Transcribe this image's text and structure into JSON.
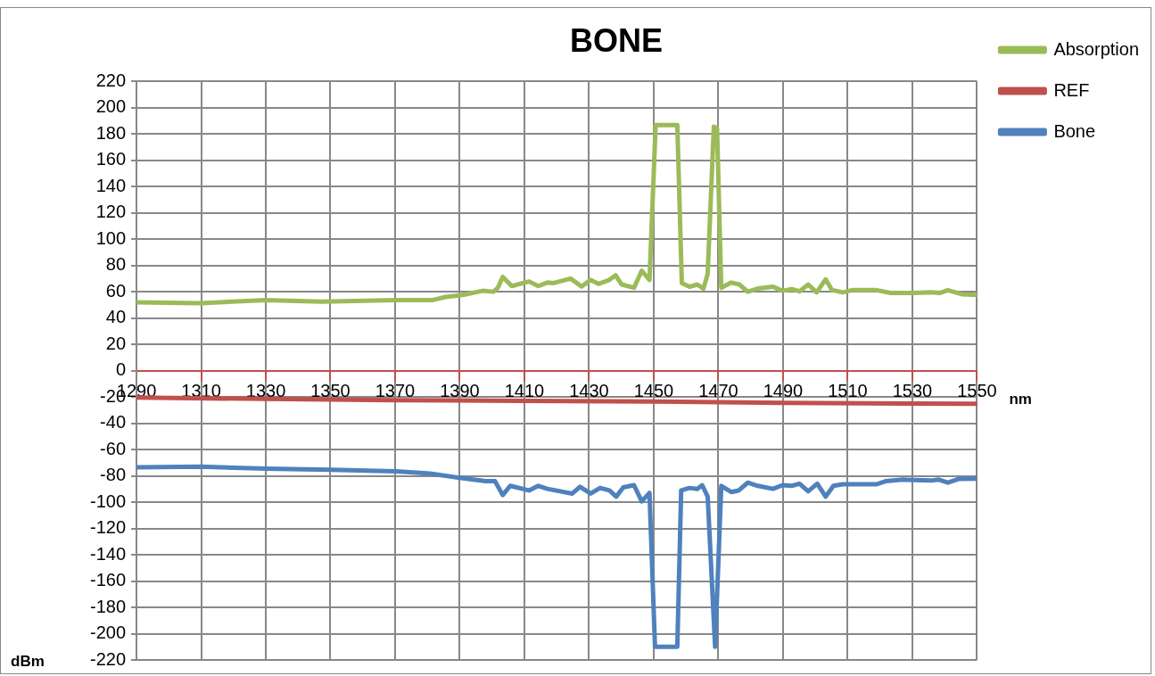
{
  "chart_data": {
    "type": "line",
    "title": "BONE",
    "xlabel": "nm",
    "ylabel": "dBm",
    "xlim": [
      1290,
      1550
    ],
    "xticks": [
      1290,
      1310,
      1330,
      1350,
      1370,
      1390,
      1410,
      1430,
      1450,
      1470,
      1490,
      1510,
      1530,
      1550
    ],
    "ylim": [
      -220,
      220
    ],
    "yticks": [
      -220,
      -200,
      -180,
      -160,
      -140,
      -120,
      -100,
      -80,
      -60,
      -40,
      -20,
      0,
      20,
      40,
      60,
      80,
      100,
      120,
      140,
      160,
      180,
      200,
      220
    ],
    "grid": true,
    "legend": "right",
    "marker": "none",
    "line_style": "solid",
    "series": [
      {
        "name": "Absorption",
        "color": "#9bbb59",
        "x": [
          1290,
          1310,
          1330,
          1347.3,
          1370.3,
          1381.7,
          1385.6,
          1391.3,
          1397,
          1400.4,
          1401.8,
          1403.3,
          1406.1,
          1411.4,
          1414.3,
          1417.1,
          1419,
          1424.3,
          1427.7,
          1430.5,
          1432.9,
          1436.3,
          1438.2,
          1440.1,
          1443.9,
          1446.3,
          1448.7,
          1450.6,
          1457.3,
          1458.7,
          1461.1,
          1463.5,
          1465.4,
          1466.7,
          1468.6,
          1469.6,
          1470.9,
          1474,
          1476.5,
          1479.1,
          1482.2,
          1486.9,
          1489.8,
          1492.7,
          1495.1,
          1497.8,
          1500.4,
          1503.2,
          1505.1,
          1508.5,
          1511.4,
          1519,
          1523.3,
          1530,
          1535.8,
          1538.6,
          1541,
          1545.3,
          1550
        ],
        "values": [
          52,
          51.3,
          53.7,
          52.5,
          53.7,
          53.7,
          56,
          57.7,
          60.7,
          60,
          63,
          71.3,
          64.3,
          67.8,
          64.3,
          67,
          66.6,
          70,
          64,
          69,
          66,
          69,
          72.5,
          65.5,
          63,
          76,
          69,
          186.7,
          186.7,
          66.6,
          63.8,
          65.5,
          62.4,
          73.7,
          185.5,
          184.3,
          63,
          67,
          65.5,
          60,
          62.4,
          63.8,
          60.7,
          62,
          60.3,
          65.5,
          59.5,
          69.4,
          61.4,
          59.5,
          61.2,
          61.2,
          59.1,
          59.1,
          59.6,
          59.1,
          61.2,
          58.1,
          57.6
        ]
      },
      {
        "name": "REF",
        "color": "#c0504d",
        "x": [
          1290,
          1330,
          1370,
          1410,
          1450,
          1490,
          1530,
          1550
        ],
        "values": [
          -20.5,
          -21.5,
          -22.5,
          -23,
          -23.5,
          -24.5,
          -25,
          -25.2
        ]
      },
      {
        "name": "Bone",
        "color": "#4f81bd",
        "x": [
          1290,
          1310,
          1330,
          1350.2,
          1370.3,
          1380.8,
          1390.4,
          1398,
          1400.9,
          1403.3,
          1405.6,
          1411.4,
          1414.3,
          1417.1,
          1424.8,
          1427.2,
          1430.5,
          1433.4,
          1436.3,
          1438.4,
          1440.6,
          1443.9,
          1446.3,
          1448.7,
          1450.4,
          1457.3,
          1458.5,
          1461.1,
          1463.5,
          1465,
          1466.7,
          1469,
          1470.9,
          1474,
          1476.3,
          1479.1,
          1482.2,
          1486.9,
          1489.8,
          1492.7,
          1495.1,
          1497.8,
          1500.6,
          1503.2,
          1505.6,
          1508.5,
          1512.8,
          1519,
          1521.9,
          1527.1,
          1535.8,
          1538.2,
          1541,
          1544.3,
          1550
        ],
        "values": [
          -73.5,
          -73,
          -74.6,
          -75.4,
          -76.5,
          -78.2,
          -81.7,
          -84,
          -84,
          -94.6,
          -87.6,
          -91.1,
          -87.6,
          -89.9,
          -93.5,
          -88.3,
          -93.5,
          -89.2,
          -91.1,
          -95.8,
          -88.8,
          -87.1,
          -99.4,
          -93,
          -210,
          -210,
          -91.1,
          -89.2,
          -89.9,
          -87.1,
          -95.8,
          -210,
          -87.6,
          -92.3,
          -91.1,
          -85.2,
          -87.6,
          -89.9,
          -87.1,
          -87.6,
          -86,
          -91.8,
          -86,
          -95.8,
          -87.6,
          -86.4,
          -86.4,
          -86.4,
          -84,
          -82.9,
          -83.6,
          -82.9,
          -85.2,
          -82.4,
          -82.2
        ]
      }
    ]
  }
}
